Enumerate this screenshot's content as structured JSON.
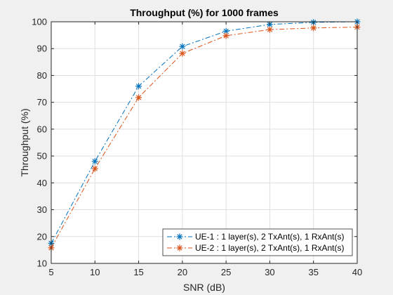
{
  "chart_data": {
    "type": "line",
    "title": "Throughput (%) for 1000 frames",
    "xlabel": "SNR (dB)",
    "ylabel": "Throughput (%)",
    "xlim": [
      5,
      40
    ],
    "ylim": [
      10,
      100
    ],
    "xticks": [
      5,
      10,
      15,
      20,
      25,
      30,
      35,
      40
    ],
    "yticks": [
      10,
      20,
      30,
      40,
      50,
      60,
      70,
      80,
      90,
      100
    ],
    "grid": true,
    "legend_position": "bottom-right",
    "x": [
      5,
      10,
      15,
      20,
      25,
      30,
      35,
      40
    ],
    "series": [
      {
        "name": "UE-1 : 1 layer(s), 2 TxAnt(s), 1 RxAnt(s)",
        "values": [
          17.5,
          48.0,
          76.0,
          90.8,
          96.5,
          99.0,
          99.8,
          100.0
        ],
        "color": "#0072BD",
        "line_style": "dash-dot",
        "marker": "asterisk"
      },
      {
        "name": "UE-2 : 1 layer(s), 2 TxAnt(s), 1 RxAnt(s)",
        "values": [
          15.8,
          45.3,
          71.8,
          88.2,
          94.8,
          97.1,
          97.7,
          98.0
        ],
        "color": "#D95319",
        "line_style": "dash-dot",
        "marker": "asterisk"
      }
    ]
  }
}
